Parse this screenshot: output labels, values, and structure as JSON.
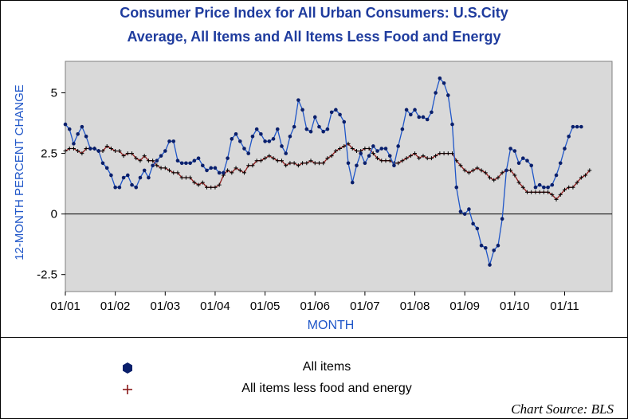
{
  "title_line1": "Consumer Price Index for All Urban Consumers: U.S.City",
  "title_line2": "Average, All Items and All Items Less Food and Energy",
  "source": "Chart Source: BLS",
  "colors": {
    "all_items": "#0a1f6b",
    "all_items_line": "#1f56c8",
    "core": "#8b1a1a",
    "axis_label": "#1f56c8",
    "plot_bg": "#d9d9d9"
  },
  "chart_data": {
    "type": "line",
    "xlabel": "MONTH",
    "ylabel": "12-MONTH PERCENT CHANGE",
    "ylim": [
      -3.2,
      6.3
    ],
    "yticks": [
      -2.5,
      0,
      2.5,
      5
    ],
    "ytick_labels": [
      "-2.5",
      "0",
      "2.5",
      "5"
    ],
    "xticks": [
      "01/01",
      "01/02",
      "01/03",
      "01/04",
      "01/05",
      "01/06",
      "01/07",
      "01/08",
      "01/09",
      "01/10",
      "01/11"
    ],
    "x_start": "2001-01",
    "grid": false,
    "legend_position": "bottom",
    "series": [
      {
        "name": "All items",
        "marker": "circle",
        "values": [
          3.7,
          3.5,
          2.9,
          3.3,
          3.6,
          3.2,
          2.7,
          2.7,
          2.6,
          2.1,
          1.9,
          1.6,
          1.1,
          1.1,
          1.5,
          1.6,
          1.2,
          1.1,
          1.5,
          1.8,
          1.5,
          2.0,
          2.2,
          2.4,
          2.6,
          3.0,
          3.0,
          2.2,
          2.1,
          2.1,
          2.1,
          2.2,
          2.3,
          2.0,
          1.8,
          1.9,
          1.9,
          1.7,
          1.7,
          2.3,
          3.1,
          3.3,
          3.0,
          2.7,
          2.5,
          3.2,
          3.5,
          3.3,
          3.0,
          3.0,
          3.1,
          3.5,
          2.8,
          2.5,
          3.2,
          3.6,
          4.7,
          4.3,
          3.5,
          3.4,
          4.0,
          3.6,
          3.4,
          3.5,
          4.2,
          4.3,
          4.1,
          3.8,
          2.1,
          1.3,
          2.0,
          2.5,
          2.1,
          2.4,
          2.8,
          2.6,
          2.7,
          2.7,
          2.4,
          2.0,
          2.8,
          3.5,
          4.3,
          4.1,
          4.3,
          4.0,
          4.0,
          3.9,
          4.2,
          5.0,
          5.6,
          5.4,
          4.9,
          3.7,
          1.1,
          0.1,
          0.0,
          0.2,
          -0.4,
          -0.6,
          -1.3,
          -1.4,
          -2.1,
          -1.5,
          -1.3,
          -0.2,
          1.8,
          2.7,
          2.6,
          2.1,
          2.3,
          2.2,
          2.0,
          1.1,
          1.2,
          1.1,
          1.1,
          1.2,
          1.6,
          2.1,
          2.7,
          3.2,
          3.6,
          3.6,
          3.6
        ]
      },
      {
        "name": "All items less food and energy",
        "marker": "plus",
        "values": [
          2.6,
          2.7,
          2.7,
          2.6,
          2.5,
          2.7,
          2.7,
          2.7,
          2.6,
          2.6,
          2.8,
          2.7,
          2.6,
          2.6,
          2.4,
          2.5,
          2.5,
          2.3,
          2.2,
          2.4,
          2.2,
          2.2,
          2.0,
          1.9,
          1.9,
          1.8,
          1.7,
          1.7,
          1.5,
          1.5,
          1.5,
          1.3,
          1.2,
          1.3,
          1.1,
          1.1,
          1.1,
          1.2,
          1.6,
          1.8,
          1.7,
          1.9,
          1.8,
          1.7,
          2.0,
          2.0,
          2.2,
          2.2,
          2.3,
          2.4,
          2.3,
          2.2,
          2.2,
          2.0,
          2.1,
          2.1,
          2.0,
          2.1,
          2.1,
          2.2,
          2.1,
          2.1,
          2.1,
          2.3,
          2.4,
          2.6,
          2.7,
          2.8,
          2.9,
          2.7,
          2.6,
          2.6,
          2.7,
          2.7,
          2.5,
          2.3,
          2.2,
          2.2,
          2.2,
          2.1,
          2.1,
          2.2,
          2.3,
          2.4,
          2.5,
          2.3,
          2.4,
          2.3,
          2.3,
          2.4,
          2.5,
          2.5,
          2.5,
          2.5,
          2.2,
          2.0,
          1.8,
          1.7,
          1.8,
          1.9,
          1.8,
          1.7,
          1.5,
          1.4,
          1.5,
          1.7,
          1.8,
          1.8,
          1.6,
          1.3,
          1.1,
          0.9,
          0.9,
          0.9,
          0.9,
          0.9,
          0.9,
          0.8,
          0.6,
          0.8,
          1.0,
          1.1,
          1.1,
          1.3,
          1.5,
          1.6,
          1.8
        ]
      }
    ]
  }
}
